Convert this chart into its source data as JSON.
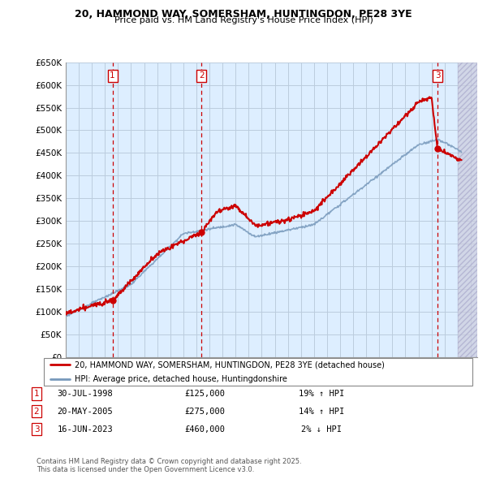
{
  "title_line1": "20, HAMMOND WAY, SOMERSHAM, HUNTINGDON, PE28 3YE",
  "title_line2": "Price paid vs. HM Land Registry's House Price Index (HPI)",
  "ylabel_ticks": [
    "£0",
    "£50K",
    "£100K",
    "£150K",
    "£200K",
    "£250K",
    "£300K",
    "£350K",
    "£400K",
    "£450K",
    "£500K",
    "£550K",
    "£600K",
    "£650K"
  ],
  "ytick_values": [
    0,
    50000,
    100000,
    150000,
    200000,
    250000,
    300000,
    350000,
    400000,
    450000,
    500000,
    550000,
    600000,
    650000
  ],
  "xmin": 1995.0,
  "xmax": 2026.5,
  "ymin": 0,
  "ymax": 650000,
  "sale_dates": [
    1998.58,
    2005.39,
    2023.46
  ],
  "sale_prices": [
    125000,
    275000,
    460000
  ],
  "sale_labels": [
    "1",
    "2",
    "3"
  ],
  "legend_line1": "20, HAMMOND WAY, SOMERSHAM, HUNTINGDON, PE28 3YE (detached house)",
  "legend_line2": "HPI: Average price, detached house, Huntingdonshire",
  "table_rows": [
    [
      "1",
      "30-JUL-1998",
      "£125,000",
      "19% ↑ HPI"
    ],
    [
      "2",
      "20-MAY-2005",
      "£275,000",
      "14% ↑ HPI"
    ],
    [
      "3",
      "16-JUN-2023",
      "£460,000",
      "2% ↓ HPI"
    ]
  ],
  "footer": "Contains HM Land Registry data © Crown copyright and database right 2025.\nThis data is licensed under the Open Government Licence v3.0.",
  "red_color": "#cc0000",
  "blue_color": "#7799bb",
  "bg_color": "#ddeeff",
  "grid_color": "#bbccdd"
}
